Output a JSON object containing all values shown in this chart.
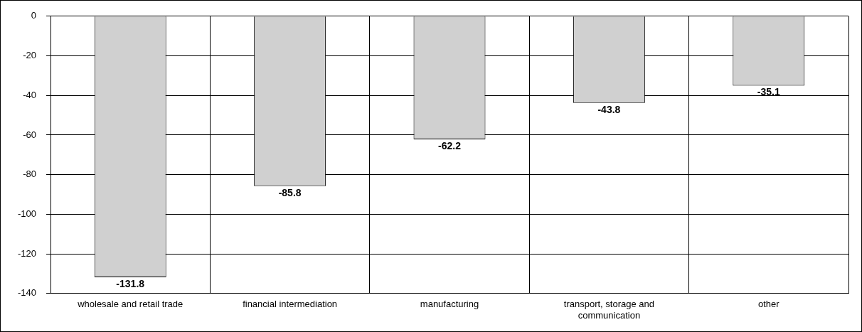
{
  "chart_data": {
    "type": "bar",
    "categories": [
      "wholesale and retail trade",
      "financial intermediation",
      "manufacturing",
      "transport, storage and communication",
      "other"
    ],
    "values": [
      -131.8,
      -85.8,
      -62.2,
      -43.8,
      -35.1
    ],
    "color": "#d0d0d0",
    "ylim": [
      -140,
      0
    ],
    "yticks": [
      0,
      -20,
      -40,
      -60,
      -80,
      -100,
      -120,
      -140
    ],
    "grid": true,
    "data_labels": true
  }
}
